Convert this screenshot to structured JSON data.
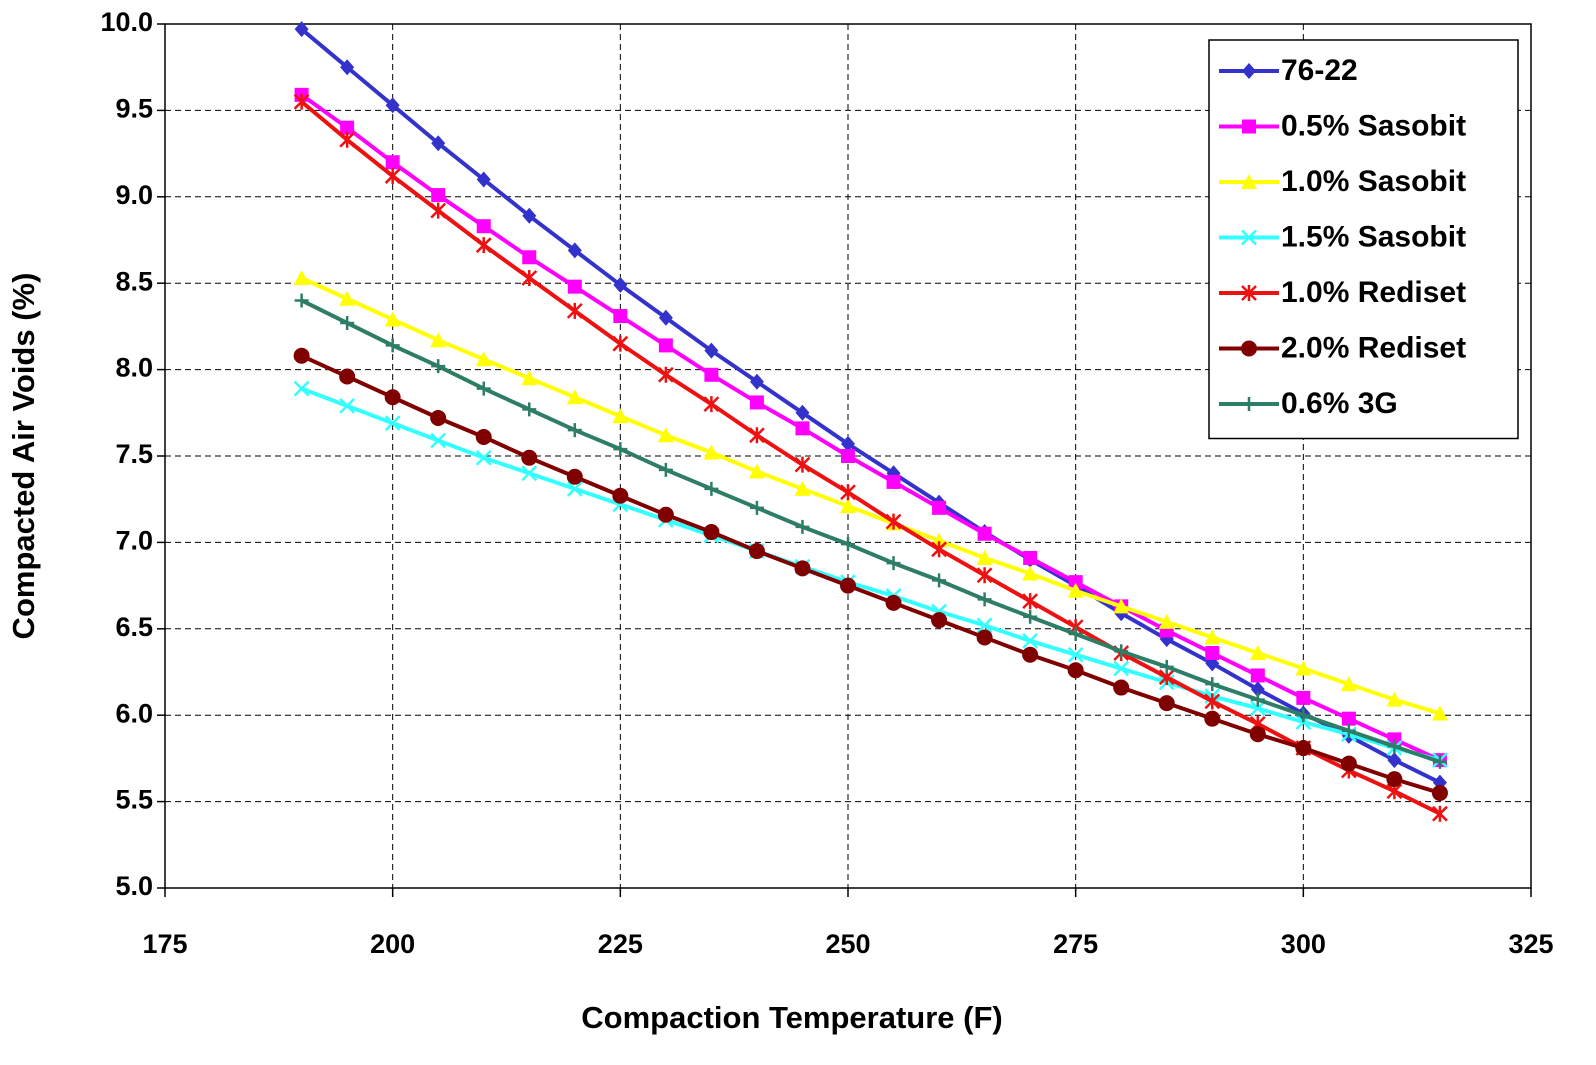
{
  "chart_data": {
    "type": "line",
    "xlabel": "Compaction Temperature (F)",
    "ylabel": "Compacted Air Voids (%)",
    "x": [
      190,
      195,
      200,
      205,
      210,
      215,
      220,
      225,
      230,
      235,
      240,
      245,
      250,
      255,
      260,
      265,
      270,
      275,
      280,
      285,
      290,
      295,
      300,
      305,
      310,
      315
    ],
    "series": [
      {
        "name": "76-22",
        "color": "#3333cc",
        "marker": "diamond",
        "values": [
          9.97,
          9.75,
          9.53,
          9.31,
          9.1,
          8.89,
          8.69,
          8.49,
          8.3,
          8.11,
          7.93,
          7.75,
          7.57,
          7.4,
          7.23,
          7.06,
          6.9,
          6.75,
          6.59,
          6.44,
          6.3,
          6.15,
          6.01,
          5.88,
          5.74,
          5.61
        ]
      },
      {
        "name": "0.5% Sasobit",
        "color": "#ff00ff",
        "marker": "square",
        "values": [
          9.59,
          9.4,
          9.2,
          9.01,
          8.83,
          8.65,
          8.48,
          8.31,
          8.14,
          7.97,
          7.81,
          7.66,
          7.5,
          7.35,
          7.2,
          7.05,
          6.91,
          6.77,
          6.63,
          6.49,
          6.36,
          6.23,
          6.1,
          5.98,
          5.86,
          5.74
        ]
      },
      {
        "name": "1.0% Sasobit",
        "color": "#ffff00",
        "marker": "triangle",
        "values": [
          8.53,
          8.41,
          8.29,
          8.17,
          8.06,
          7.95,
          7.84,
          7.73,
          7.62,
          7.52,
          7.41,
          7.31,
          7.21,
          7.11,
          7.01,
          6.91,
          6.82,
          6.72,
          6.63,
          6.54,
          6.45,
          6.36,
          6.27,
          6.18,
          6.09,
          6.01
        ]
      },
      {
        "name": "1.5% Sasobit",
        "color": "#33ffff",
        "marker": "x",
        "values": [
          7.89,
          7.79,
          7.69,
          7.59,
          7.49,
          7.4,
          7.31,
          7.22,
          7.13,
          7.04,
          6.95,
          6.86,
          6.77,
          6.69,
          6.6,
          6.52,
          6.43,
          6.35,
          6.27,
          6.19,
          6.11,
          6.04,
          5.96,
          5.89,
          5.81,
          5.74
        ]
      },
      {
        "name": "1.0% Rediset",
        "color": "#ee1111",
        "marker": "star",
        "values": [
          9.55,
          9.33,
          9.12,
          8.92,
          8.72,
          8.53,
          8.34,
          8.15,
          7.97,
          7.8,
          7.62,
          7.45,
          7.29,
          7.12,
          6.96,
          6.81,
          6.66,
          6.51,
          6.36,
          6.22,
          6.08,
          5.95,
          5.81,
          5.68,
          5.56,
          5.43
        ]
      },
      {
        "name": "2.0% Rediset",
        "color": "#800000",
        "marker": "circle",
        "values": [
          8.08,
          7.96,
          7.84,
          7.72,
          7.61,
          7.49,
          7.38,
          7.27,
          7.16,
          7.06,
          6.95,
          6.85,
          6.75,
          6.65,
          6.55,
          6.45,
          6.35,
          6.26,
          6.16,
          6.07,
          5.98,
          5.89,
          5.81,
          5.72,
          5.63,
          5.55
        ]
      },
      {
        "name": "0.6% 3G",
        "color": "#2e7d66",
        "marker": "plus",
        "values": [
          8.4,
          8.27,
          8.14,
          8.02,
          7.89,
          7.77,
          7.65,
          7.54,
          7.42,
          7.31,
          7.2,
          7.09,
          6.99,
          6.88,
          6.78,
          6.67,
          6.57,
          6.47,
          6.37,
          6.28,
          6.18,
          6.09,
          6.0,
          5.91,
          5.82,
          5.73
        ]
      }
    ],
    "xlim": [
      175,
      325
    ],
    "xticks": [
      175,
      200,
      225,
      250,
      275,
      300,
      325
    ],
    "ylim": [
      5,
      10
    ],
    "yticks": [
      {
        "value": 5,
        "label": "5.0"
      },
      5.5,
      {
        "value": 6,
        "label": "6.0"
      },
      6.5,
      {
        "value": 7,
        "label": "7.0"
      },
      7.5,
      {
        "value": 8,
        "label": "8.0"
      },
      8.5,
      {
        "value": 9,
        "label": "9.0"
      },
      9.5,
      {
        "value": 10,
        "label": "10.0"
      }
    ],
    "grid": true,
    "legend": "upper right"
  }
}
